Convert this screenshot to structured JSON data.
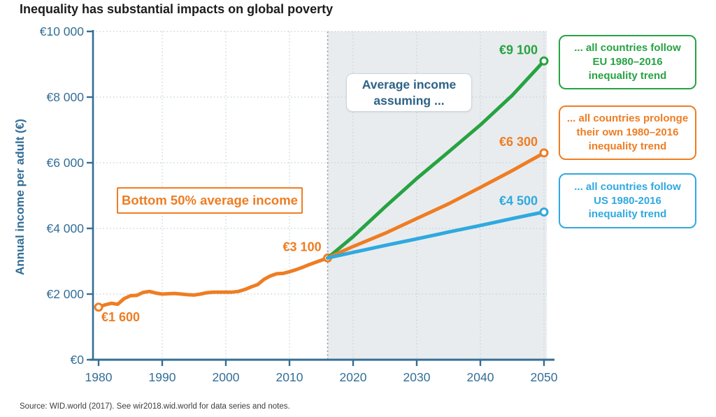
{
  "title": "Inequality has substantial impacts on global poverty",
  "source": "Source: WID.world (2017). See wir2018.wid.world for data series and notes.",
  "annotations": {
    "assuming_line1": "Average income",
    "assuming_line2": "assuming ...",
    "bottom50": "Bottom 50%  average income"
  },
  "legend": {
    "items": [
      {
        "name": "eu-trend",
        "color": "#26a342",
        "lines": [
          "... all countries follow",
          "EU 1980–2016",
          "inequality trend"
        ]
      },
      {
        "name": "own-trend",
        "color": "#ee7d23",
        "lines": [
          "... all countries prolonge",
          "their own 1980–2016",
          "inequality trend"
        ]
      },
      {
        "name": "us-trend",
        "color": "#2fa9e0",
        "lines": [
          "... all countries follow",
          "US 1980-2016",
          "inequality trend"
        ]
      }
    ]
  },
  "colors": {
    "green": "#26a342",
    "orange": "#ee7d23",
    "blue": "#2fa9e0",
    "axis": "#336e96",
    "grid": "#c2d1dc",
    "shade": "#e9ecee",
    "boundary": "#98a4ad",
    "annotation_blue": "#2d6286"
  },
  "chart_data": {
    "type": "line",
    "title": "Inequality has substantial impacts on global poverty",
    "xlabel": "",
    "ylabel": "Annual income per adult (€)",
    "xlim": [
      1980,
      2050
    ],
    "ylim": [
      0,
      10000
    ],
    "grid": "dotted",
    "projection_start_year": 2016,
    "projection_region_shaded": true,
    "xticks": [
      {
        "value": 1980,
        "label": "1980"
      },
      {
        "value": 1990,
        "label": "1990"
      },
      {
        "value": 2000,
        "label": "2000"
      },
      {
        "value": 2010,
        "label": "2010"
      },
      {
        "value": 2020,
        "label": "2020"
      },
      {
        "value": 2030,
        "label": "2030"
      },
      {
        "value": 2040,
        "label": "2040"
      },
      {
        "value": 2050,
        "label": "2050"
      }
    ],
    "yticks": [
      {
        "value": 0,
        "label": "€0"
      },
      {
        "value": 2000,
        "label": "€2 000"
      },
      {
        "value": 4000,
        "label": "€4 000"
      },
      {
        "value": 6000,
        "label": "€6 000"
      },
      {
        "value": 8000,
        "label": "€8 000"
      },
      {
        "value": 10000,
        "label": "€10 000"
      }
    ],
    "series": [
      {
        "name": "historical-bottom50",
        "legend": "Bottom 50% average income",
        "color": "#ee7d23",
        "markers": "ends",
        "points": [
          [
            1980,
            1600
          ],
          [
            1981,
            1670
          ],
          [
            1982,
            1720
          ],
          [
            1983,
            1690
          ],
          [
            1984,
            1860
          ],
          [
            1985,
            1950
          ],
          [
            1986,
            1960
          ],
          [
            1987,
            2050
          ],
          [
            1988,
            2080
          ],
          [
            1989,
            2030
          ],
          [
            1990,
            2000
          ],
          [
            1991,
            2010
          ],
          [
            1992,
            2020
          ],
          [
            1993,
            2000
          ],
          [
            1994,
            1980
          ],
          [
            1995,
            1970
          ],
          [
            1996,
            2000
          ],
          [
            1997,
            2040
          ],
          [
            1998,
            2060
          ],
          [
            1999,
            2060
          ],
          [
            2000,
            2060
          ],
          [
            2001,
            2060
          ],
          [
            2002,
            2080
          ],
          [
            2003,
            2140
          ],
          [
            2004,
            2220
          ],
          [
            2005,
            2290
          ],
          [
            2006,
            2450
          ],
          [
            2007,
            2550
          ],
          [
            2008,
            2620
          ],
          [
            2009,
            2630
          ],
          [
            2010,
            2680
          ],
          [
            2011,
            2740
          ],
          [
            2012,
            2810
          ],
          [
            2013,
            2890
          ],
          [
            2014,
            2960
          ],
          [
            2015,
            3030
          ],
          [
            2016,
            3100
          ]
        ]
      },
      {
        "name": "projection-eu",
        "legend": "... all countries follow EU 1980–2016 inequality trend",
        "color": "#26a342",
        "markers": "last",
        "points": [
          [
            2016,
            3100
          ],
          [
            2020,
            3750
          ],
          [
            2025,
            4650
          ],
          [
            2030,
            5520
          ],
          [
            2035,
            6330
          ],
          [
            2040,
            7150
          ],
          [
            2045,
            8050
          ],
          [
            2050,
            9100
          ]
        ]
      },
      {
        "name": "projection-own",
        "legend": "... all countries prolonge their own 1980–2016 inequality trend",
        "color": "#ee7d23",
        "markers": "last",
        "points": [
          [
            2016,
            3100
          ],
          [
            2020,
            3450
          ],
          [
            2025,
            3850
          ],
          [
            2030,
            4300
          ],
          [
            2035,
            4750
          ],
          [
            2040,
            5250
          ],
          [
            2045,
            5760
          ],
          [
            2050,
            6300
          ]
        ]
      },
      {
        "name": "projection-us",
        "legend": "... all countries follow US 1980-2016 inequality trend",
        "color": "#2fa9e0",
        "markers": "last",
        "points": [
          [
            2016,
            3100
          ],
          [
            2020,
            3270
          ],
          [
            2025,
            3480
          ],
          [
            2030,
            3680
          ],
          [
            2035,
            3890
          ],
          [
            2040,
            4090
          ],
          [
            2045,
            4300
          ],
          [
            2050,
            4500
          ]
        ]
      }
    ],
    "point_labels": [
      {
        "text": "€1 600",
        "year": 1980,
        "value": 1600,
        "color": "#ee7d23",
        "pos": "start-below"
      },
      {
        "text": "€3 100",
        "year": 2016,
        "value": 3100,
        "color": "#ee7d23",
        "pos": "end-above"
      },
      {
        "text": "€9 100",
        "year": 2050,
        "value": 9100,
        "color": "#26a342",
        "pos": "end-above"
      },
      {
        "text": "€6 300",
        "year": 2050,
        "value": 6300,
        "color": "#ee7d23",
        "pos": "end-above"
      },
      {
        "text": "€4 500",
        "year": 2050,
        "value": 4500,
        "color": "#2fa9e0",
        "pos": "end-above"
      }
    ]
  }
}
